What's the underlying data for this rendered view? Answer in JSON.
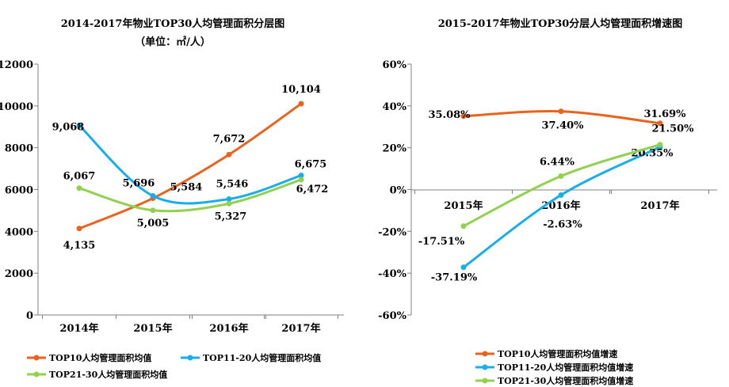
{
  "colors": {
    "orange": "#e8631c",
    "blue": "#1aaee8",
    "green": "#92d050",
    "axis": "#808080"
  },
  "chart_data": [
    {
      "type": "line",
      "title": "2014-2017年物业TOP30人均管理面积分层图",
      "subtitle": "（单位：㎡/人）",
      "categories": [
        "2014年",
        "2015年",
        "2016年",
        "2017年"
      ],
      "ylim": [
        0,
        12000
      ],
      "yticks": [
        0,
        2000,
        4000,
        6000,
        8000,
        10000,
        12000
      ],
      "ytick_labels": [
        "0",
        "2000",
        "4000",
        "6000",
        "8000",
        "10000",
        "12000"
      ],
      "grid": false,
      "legend_position": "bottom",
      "series": [
        {
          "name": "TOP10人均管理面积均值",
          "color_key": "orange",
          "values": [
            4135,
            5584,
            7672,
            10104
          ],
          "labels": [
            "4,135",
            "5,584",
            "7,672",
            "10,104"
          ]
        },
        {
          "name": "TOP11-20人均管理面积均值",
          "color_key": "blue",
          "values": [
            9068,
            5696,
            5546,
            6675
          ],
          "labels": [
            "9,068",
            "5,696",
            "5,546",
            "6,675"
          ]
        },
        {
          "name": "TOP21-30人均管理面积均值",
          "color_key": "green",
          "values": [
            6067,
            5005,
            5327,
            6472
          ],
          "labels": [
            "6,067",
            "5,005",
            "5,327",
            "6,472"
          ]
        }
      ]
    },
    {
      "type": "line",
      "title": "2015-2017年物业TOP30分层人均管理面积增速图",
      "categories": [
        "2015年",
        "2016年",
        "2017年"
      ],
      "ylim": [
        -60,
        60
      ],
      "yticks": [
        -60,
        -40,
        -20,
        0,
        20,
        40,
        60
      ],
      "ytick_labels": [
        "-60%",
        "-40%",
        "-20%",
        "0%",
        "20%",
        "40%",
        "60%"
      ],
      "grid": false,
      "legend_position": "bottom",
      "series": [
        {
          "name": "TOP10人均管理面积均值增速",
          "color_key": "orange",
          "values": [
            35.08,
            37.4,
            31.69
          ],
          "labels": [
            "35.08%",
            "37.40%",
            "31.69%"
          ]
        },
        {
          "name": "TOP11-20人均管理面积均值增速",
          "color_key": "blue",
          "values": [
            -37.19,
            -2.63,
            20.35
          ],
          "labels": [
            "-37.19%",
            "-2.63%",
            "20.35%"
          ]
        },
        {
          "name": "TOP21-30人均管理面积均值增速",
          "color_key": "green",
          "values": [
            -17.51,
            6.44,
            21.5
          ],
          "labels": [
            "-17.51%",
            "6.44%",
            "21.50%"
          ]
        }
      ]
    }
  ]
}
